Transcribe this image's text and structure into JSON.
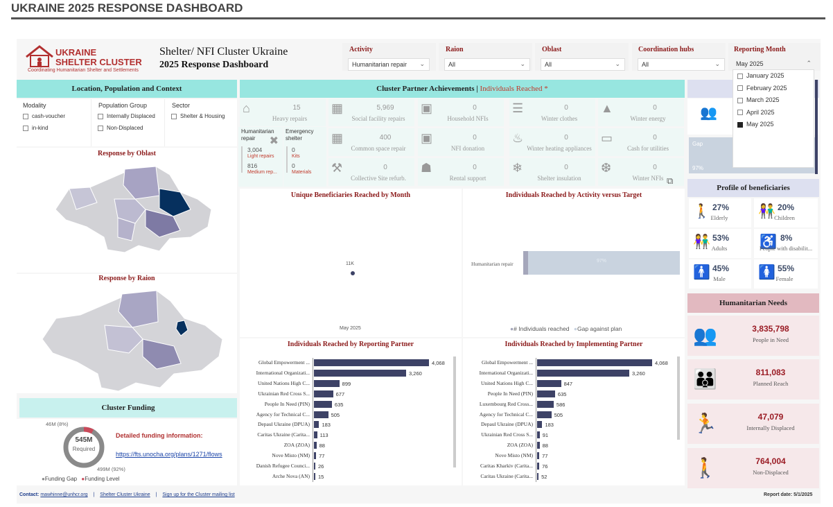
{
  "page_title": "UKRAINE 2025 RESPONSE DASHBOARD",
  "logo": {
    "line1": "UKRAINE",
    "line2": "SHELTER CLUSTER",
    "tagline": "Coordinating Humanitarian Shelter and Settlements"
  },
  "dashboard_title": {
    "line1": "Shelter/ NFI Cluster Ukraine",
    "line2": "2025 Response Dashboard"
  },
  "filters": [
    {
      "label": "Activity",
      "value": "Humanitarian repair"
    },
    {
      "label": "Raion",
      "value": "All"
    },
    {
      "label": "Oblast",
      "value": "All"
    },
    {
      "label": "Coordination hubs",
      "value": "All"
    },
    {
      "label": "Reporting Month",
      "value": "May 2025"
    }
  ],
  "reporting_month_options": [
    {
      "label": "January 2025",
      "checked": false
    },
    {
      "label": "February 2025",
      "checked": false
    },
    {
      "label": "March 2025",
      "checked": false
    },
    {
      "label": "April 2025",
      "checked": false
    },
    {
      "label": "May 2025",
      "checked": true
    }
  ],
  "location": {
    "header": "Location, Population and Context",
    "modality_label": "Modality",
    "modality_options": [
      "cash-voucher",
      "in-kind"
    ],
    "population_label": "Population Group",
    "population_options": [
      "Internally Displaced",
      "Non-Displaced"
    ],
    "sector_label": "Sector",
    "sector_options": [
      "Shelter & Housing"
    ],
    "map_oblast_title": "Response by Oblast",
    "map_raion_title": "Response by Raion"
  },
  "achievements": {
    "header_main": "Cluster Partner Achievements | ",
    "header_accent": "Individuals Reached *",
    "tiles": [
      {
        "value": "15",
        "label": "Heavy repairs",
        "icon": "house-icon"
      },
      {
        "value": "5,969",
        "label": "Social facility repairs",
        "icon": "building-icon"
      },
      {
        "value": "0",
        "label": "Household NFIs",
        "icon": "nfi-icon"
      },
      {
        "value": "0",
        "label": "Winter clothes",
        "icon": "shirt-icon"
      },
      {
        "value": "0",
        "label": "Winter energy",
        "icon": "drop-icon"
      },
      {
        "value": "400",
        "label": "Common space repair",
        "icon": "building-icon"
      },
      {
        "value": "0",
        "label": "NFI donation",
        "icon": "nfi-icon"
      },
      {
        "value": "0",
        "label": "Winter heating appliances",
        "icon": "heater-icon"
      },
      {
        "value": "0",
        "label": "Cash for utilities",
        "icon": "cash-icon"
      },
      {
        "value": "0",
        "label": "Collective Site refurb.",
        "icon": "tools-icon"
      },
      {
        "value": "0",
        "label": "Rental support",
        "icon": "rental-icon"
      },
      {
        "value": "0",
        "label": "Shelter insulation",
        "icon": "insulation-icon"
      },
      {
        "value": "0",
        "label": "Winter NFIs",
        "icon": "snowflake-icon"
      }
    ],
    "humanitarian_repair": {
      "title": "Humanitarian repair",
      "v1": "3,004",
      "l1": "Light repairs",
      "v2": "816",
      "l2": "Medium rep..."
    },
    "emergency_shelter": {
      "title": "Emergency shelter",
      "v1": "0",
      "l1": "Kits",
      "v2": "0",
      "l2": "Materials"
    }
  },
  "unique_by_month": {
    "title": "Unique Beneficiaries Reached by Month",
    "point_label": "11K",
    "x_label": "May 2025"
  },
  "activity_vs_target": {
    "title": "Individuals Reached by Activity versus Target",
    "category": "Humanitarian repair",
    "pct_label": "97%",
    "legend_reached": "# Individuals reached",
    "legend_gap": "Gap against plan"
  },
  "gap_card": {
    "label": "Gap",
    "value": "97%"
  },
  "reporting_partner": {
    "title": "Individuals Reached by Reporting Partner",
    "rows": [
      {
        "name": "Global Empowerment ...",
        "value": 4068,
        "label": "4,068"
      },
      {
        "name": "International Organizati...",
        "value": 3260,
        "label": "3,260"
      },
      {
        "name": "United Nations High C...",
        "value": 899,
        "label": "899"
      },
      {
        "name": "Ukrainian Red Cross S...",
        "value": 677,
        "label": "677"
      },
      {
        "name": "People In Need (PIN)",
        "value": 635,
        "label": "635"
      },
      {
        "name": "Agency for Technical C...",
        "value": 505,
        "label": "505"
      },
      {
        "name": "Depaul Ukraine (DPUA)",
        "value": 183,
        "label": "183"
      },
      {
        "name": "Caritas Ukraine (Carita...",
        "value": 113,
        "label": "113"
      },
      {
        "name": "ZOA (ZOA)",
        "value": 88,
        "label": "88"
      },
      {
        "name": "Nove Misto (NM)",
        "value": 77,
        "label": "77"
      },
      {
        "name": "Danish Refugee Counci...",
        "value": 26,
        "label": "26"
      },
      {
        "name": "Arche Nova (AN)",
        "value": 15,
        "label": "15"
      }
    ]
  },
  "implementing_partner": {
    "title": "Individuals Reached by Implementing Partner",
    "rows": [
      {
        "name": "Global Empowerment ...",
        "value": 4068,
        "label": "4,068"
      },
      {
        "name": "International Organizati...",
        "value": 3260,
        "label": "3,260"
      },
      {
        "name": "United Nations High C...",
        "value": 847,
        "label": "847"
      },
      {
        "name": "People In Need (PIN)",
        "value": 635,
        "label": "635"
      },
      {
        "name": "Luxembourg Red Cross...",
        "value": 586,
        "label": "586"
      },
      {
        "name": "Agency for Technical C...",
        "value": 505,
        "label": "505"
      },
      {
        "name": "Depaul Ukraine (DPUA)",
        "value": 183,
        "label": "183"
      },
      {
        "name": "Ukrainian Red Cross S...",
        "value": 91,
        "label": "91"
      },
      {
        "name": "ZOA (ZOA)",
        "value": 88,
        "label": "88"
      },
      {
        "name": "Nove Misto (NM)",
        "value": 77,
        "label": "77"
      },
      {
        "name": "Caritas Kharkiv (Carita...",
        "value": 76,
        "label": "76"
      },
      {
        "name": "Caritas Ukraine (Carita...",
        "value": 52,
        "label": "52"
      }
    ]
  },
  "funding": {
    "header": "Cluster Funding",
    "total": "545M",
    "total_label": "Required",
    "funding_level_label": "46M (8%)",
    "funding_level_fraction": 0.08,
    "gap_label": "499M (92%)",
    "detail_title": "Detailed funding information:",
    "detail_link": "https://fts.unocha.org/plans/1271/flows",
    "legend_gap": "Funding Gap",
    "legend_level": "Funding Level"
  },
  "profile": {
    "header": "Profile of beneficiaries",
    "items": [
      {
        "value": "27%",
        "label": "Elderly",
        "icon": "elderly-icon"
      },
      {
        "value": "20%",
        "label": "Children",
        "icon": "children-icon"
      },
      {
        "value": "53%",
        "label": "Adults",
        "icon": "adults-icon"
      },
      {
        "value": "8%",
        "label": "People with disabilit...",
        "icon": "wheelchair-icon"
      },
      {
        "value": "45%",
        "label": "Male",
        "icon": "male-icon"
      },
      {
        "value": "55%",
        "label": "Female",
        "icon": "female-icon"
      }
    ]
  },
  "needs": {
    "header": "Humanitarian Needs",
    "items": [
      {
        "value": "3,835,798",
        "label": "People in Need",
        "icon": "people-group-icon"
      },
      {
        "value": "811,083",
        "label": "Planned Reach",
        "icon": "planned-reach-icon"
      },
      {
        "value": "47,079",
        "label": "Internally Displaced",
        "icon": "displaced-icon"
      },
      {
        "value": "764,004",
        "label": "Non-Displaced",
        "icon": "non-displaced-icon"
      }
    ]
  },
  "footer": {
    "contact_label": "Contact:",
    "email": "mawhinne@unhcr.org",
    "sep": "|",
    "link1": "Shelter Cluster Ukraine",
    "link2": "Sign up for the Cluster mailing list",
    "report_date": "Report date: 5/1/2025"
  },
  "colors": {
    "teal": "#97e6e0",
    "bar": "#3d4266",
    "accent": "#8b1a1a",
    "needs_red": "#b01e28"
  }
}
